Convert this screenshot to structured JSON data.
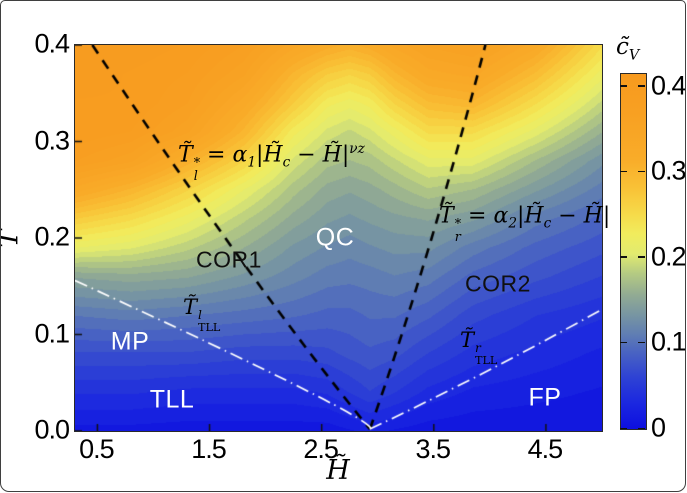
{
  "axes": {
    "xlabel": "H̃",
    "ylabel": "T̃",
    "x_tick_labels": [
      "0.5",
      "1.5",
      "2.5",
      "3.5",
      "4.5"
    ],
    "x_tick_values": [
      0.5,
      1.5,
      2.5,
      3.5,
      4.5
    ],
    "y_tick_labels": [
      "0.0",
      "0.1",
      "0.2",
      "0.3",
      "0.4"
    ],
    "y_tick_values": [
      0.0,
      0.1,
      0.2,
      0.3,
      0.4
    ]
  },
  "colorbar": {
    "label_base": "c̃",
    "label_sub": "V",
    "tick_labels": [
      "0",
      "0.1",
      "0.2",
      "0.3",
      "0.4"
    ],
    "tick_values": [
      0,
      0.1,
      0.2,
      0.3,
      0.4
    ],
    "range": [
      0,
      0.415
    ]
  },
  "phase_labels": {
    "cor1": "COR1",
    "qc": "QC",
    "cor2": "COR2",
    "mp": "MP",
    "tll": "TLL",
    "fp": "FP"
  },
  "annotations": {
    "eq_left": {
      "base": "T̃",
      "sup": "*",
      "sub": "l",
      "eq": " = α",
      "alpha_sub": "1",
      "lhs_abs": "|H̃",
      "h_sub": "c",
      "rhs_abs": " − H̃|",
      "exp": "νz"
    },
    "eq_right": {
      "base": "T̃",
      "sup": "*",
      "sub": "r",
      "eq": " = α",
      "alpha_sub": "2",
      "lhs_abs": "|H̃",
      "h_sub": "c",
      "rhs_abs": " − H̃|",
      "exp": ""
    },
    "tll_left": {
      "base": "T̃",
      "sup": "l",
      "sub": "TLL"
    },
    "tll_right": {
      "base": "T̃",
      "sup": "r",
      "sub": "TLL"
    }
  },
  "chart_data": {
    "type": "heatmap",
    "title": "",
    "xlabel": "H̃",
    "ylabel": "T̃",
    "value_label": "c̃V",
    "x_range": [
      0.3,
      5.0
    ],
    "y_range": [
      0.0,
      0.4
    ],
    "value_range": [
      0,
      0.415
    ],
    "quantize_step": 0.011,
    "critical_field": 2.93,
    "h_values": [
      0.3,
      0.8,
      1.3,
      1.8,
      2.25,
      2.55,
      2.75,
      2.93,
      3.15,
      3.45,
      3.85,
      4.4,
      5.0
    ],
    "t_values": [
      0.4,
      0.37,
      0.34,
      0.31,
      0.28,
      0.25,
      0.22,
      0.19,
      0.16,
      0.12,
      0.08,
      0.04,
      0.0
    ],
    "values": [
      [
        0.41,
        0.41,
        0.4,
        0.38,
        0.34,
        0.32,
        0.31,
        0.32,
        0.34,
        0.36,
        0.37,
        0.33,
        0.25
      ],
      [
        0.41,
        0.4,
        0.39,
        0.36,
        0.3,
        0.27,
        0.26,
        0.27,
        0.3,
        0.33,
        0.34,
        0.29,
        0.22
      ],
      [
        0.4,
        0.4,
        0.38,
        0.33,
        0.27,
        0.23,
        0.22,
        0.23,
        0.26,
        0.29,
        0.3,
        0.25,
        0.19
      ],
      [
        0.4,
        0.39,
        0.36,
        0.3,
        0.23,
        0.2,
        0.19,
        0.2,
        0.22,
        0.25,
        0.25,
        0.21,
        0.16
      ],
      [
        0.38,
        0.36,
        0.31,
        0.26,
        0.2,
        0.175,
        0.17,
        0.175,
        0.19,
        0.21,
        0.21,
        0.17,
        0.13
      ],
      [
        0.33,
        0.3,
        0.26,
        0.215,
        0.175,
        0.155,
        0.15,
        0.155,
        0.165,
        0.18,
        0.17,
        0.14,
        0.11
      ],
      [
        0.27,
        0.25,
        0.22,
        0.185,
        0.155,
        0.14,
        0.135,
        0.14,
        0.145,
        0.15,
        0.14,
        0.11,
        0.09
      ],
      [
        0.215,
        0.205,
        0.185,
        0.16,
        0.135,
        0.125,
        0.12,
        0.125,
        0.13,
        0.13,
        0.11,
        0.09,
        0.075
      ],
      [
        0.15,
        0.155,
        0.15,
        0.135,
        0.12,
        0.11,
        0.108,
        0.11,
        0.115,
        0.11,
        0.09,
        0.075,
        0.06
      ],
      [
        0.105,
        0.11,
        0.105,
        0.1,
        0.095,
        0.09,
        0.09,
        0.095,
        0.095,
        0.085,
        0.065,
        0.05,
        0.04
      ],
      [
        0.07,
        0.07,
        0.07,
        0.065,
        0.065,
        0.068,
        0.075,
        0.08,
        0.075,
        0.06,
        0.045,
        0.035,
        0.025
      ],
      [
        0.04,
        0.04,
        0.035,
        0.035,
        0.035,
        0.04,
        0.05,
        0.06,
        0.05,
        0.035,
        0.025,
        0.02,
        0.015
      ],
      [
        0.012,
        0.012,
        0.01,
        0.01,
        0.01,
        0.01,
        0.015,
        0.02,
        0.015,
        0.01,
        0.008,
        0.008,
        0.008
      ]
    ],
    "colormap": [
      [
        0.0,
        "#0d0fdf"
      ],
      [
        0.03,
        "#1b27e0"
      ],
      [
        0.06,
        "#2e42d4"
      ],
      [
        0.09,
        "#4a64c2"
      ],
      [
        0.11,
        "#5f7db3"
      ],
      [
        0.132,
        "#7694a3"
      ],
      [
        0.157,
        "#92ab93"
      ],
      [
        0.182,
        "#b5cb82"
      ],
      [
        0.205,
        "#e2eb6f"
      ],
      [
        0.228,
        "#f1ec5d"
      ],
      [
        0.252,
        "#f6da49"
      ],
      [
        0.282,
        "#f9c136"
      ],
      [
        0.315,
        "#f9ac29"
      ],
      [
        0.37,
        "#f8a022"
      ],
      [
        0.43,
        "#f79a1e"
      ]
    ],
    "boundary_lines": [
      {
        "name": "T-star-left",
        "style": "dashed",
        "color": "#000000",
        "width": 2.6,
        "points": [
          [
            0.455,
            0.4
          ],
          [
            1.795,
            0.175
          ],
          [
            2.93,
            0.002
          ]
        ]
      },
      {
        "name": "T-star-right",
        "style": "dashed",
        "color": "#000000",
        "width": 2.6,
        "points": [
          [
            2.93,
            0.002
          ],
          [
            3.455,
            0.19
          ],
          [
            3.96,
            0.4
          ]
        ]
      },
      {
        "name": "T-TLL-left",
        "style": "dashdot",
        "color": "#ffffff",
        "width": 1.7,
        "points": [
          [
            0.3,
            0.156
          ],
          [
            2.33,
            0.044
          ],
          [
            2.93,
            0.002
          ]
        ]
      },
      {
        "name": "T-TLL-right",
        "style": "dashdot",
        "color": "#ffffff",
        "width": 1.7,
        "points": [
          [
            2.93,
            0.002
          ],
          [
            3.94,
            0.06
          ],
          [
            5.0,
            0.126
          ]
        ]
      }
    ]
  }
}
